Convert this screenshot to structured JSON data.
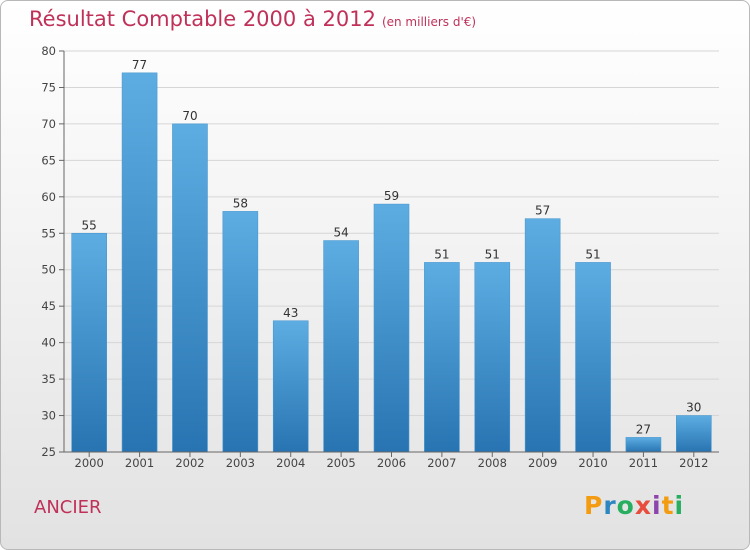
{
  "title": "Résultat Comptable 2000 à 2012",
  "subtitle": "(en milliers d'€)",
  "town": "ANCIER",
  "logo": {
    "text": "Proxiti",
    "letters": [
      "P",
      "r",
      "o",
      "x",
      "i",
      "t",
      "i"
    ],
    "colors": [
      "#f39c12",
      "#2e86c1",
      "#27ae60",
      "#e74c3c",
      "#8e44ad",
      "#f39c12",
      "#27ae60"
    ]
  },
  "colors": {
    "bar_top": "#5dade2",
    "bar_bottom": "#2874b2",
    "title": "#c0315a"
  },
  "chart_data": {
    "type": "bar",
    "title": "Résultat Comptable 2000 à 2012",
    "subtitle": "(en milliers d'€)",
    "xlabel": "",
    "ylabel": "",
    "categories": [
      "2000",
      "2001",
      "2002",
      "2003",
      "2004",
      "2005",
      "2006",
      "2007",
      "2008",
      "2009",
      "2010",
      "2011",
      "2012"
    ],
    "values": [
      55,
      77,
      70,
      58,
      43,
      54,
      59,
      51,
      51,
      57,
      51,
      27,
      30
    ],
    "ylim": [
      25,
      80
    ],
    "yticks": [
      25,
      30,
      35,
      40,
      45,
      50,
      55,
      60,
      65,
      70,
      75,
      80
    ],
    "grid": true,
    "legend": "none"
  }
}
